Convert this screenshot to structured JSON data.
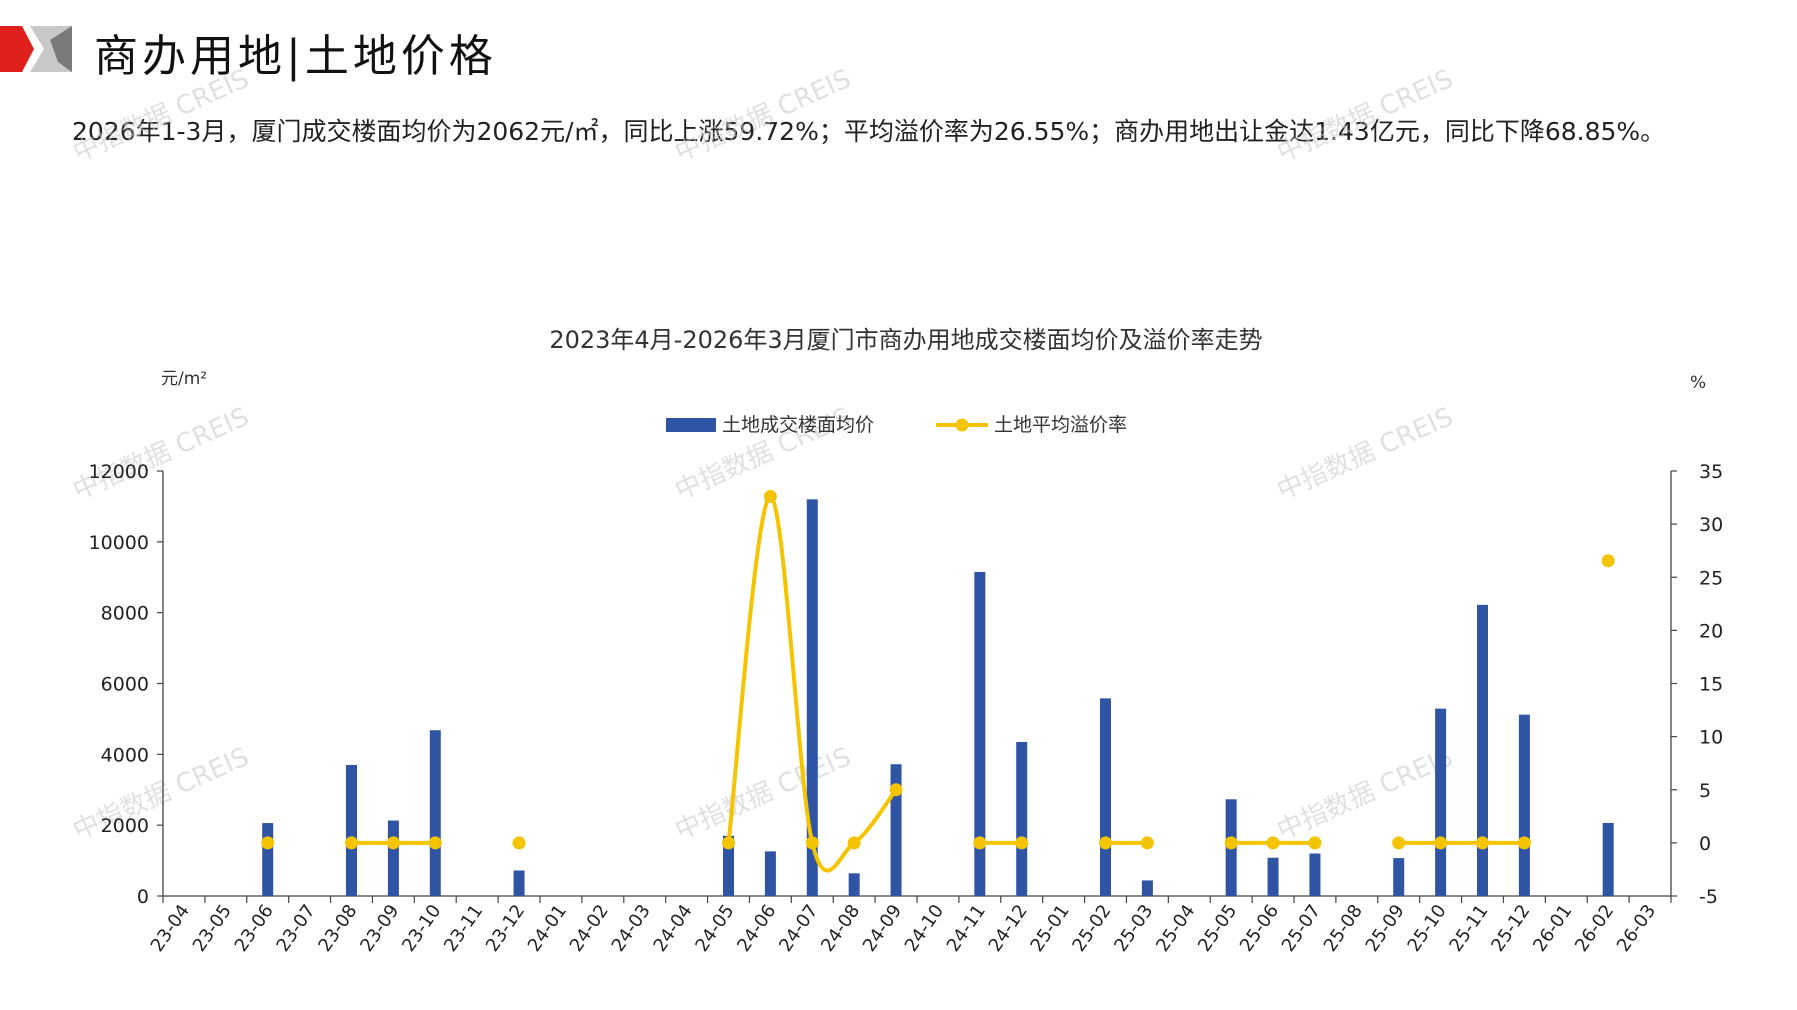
{
  "page": {
    "title": "商办用地|土地价格",
    "summary": "2026年1-3月，厦门成交楼面均价为2062元/㎡，同比上涨59.72%；平均溢价率为26.55%；商办用地出让金达1.43亿元，同比下降68.85%。",
    "watermark": "中指数据 CREIS"
  },
  "colors": {
    "bar": "#2F54A3",
    "line": "#F5C400",
    "header_red": "#E0201D",
    "header_gray": "#BDBDBD",
    "axis": "#444444"
  },
  "chart_data": {
    "type": "bar",
    "title": "2023年4月-2026年3月厦门市商办用地成交楼面均价及溢价率走势",
    "y_left_unit": "元/m²",
    "y_right_unit": "%",
    "ylim_left": [
      0,
      12000
    ],
    "ylim_right": [
      -5,
      35
    ],
    "yticks_left": [
      0,
      2000,
      4000,
      6000,
      8000,
      10000,
      12000
    ],
    "yticks_right": [
      -5,
      0,
      5,
      10,
      15,
      20,
      25,
      30,
      35
    ],
    "grid": false,
    "legend_position": "top-center",
    "categories": [
      "23-04",
      "23-05",
      "23-06",
      "23-07",
      "23-08",
      "23-09",
      "23-10",
      "23-11",
      "23-12",
      "24-01",
      "24-02",
      "24-03",
      "24-04",
      "24-05",
      "24-06",
      "24-07",
      "24-08",
      "24-09",
      "24-10",
      "24-11",
      "24-12",
      "25-01",
      "25-02",
      "25-03",
      "25-04",
      "25-05",
      "25-06",
      "25-07",
      "25-08",
      "25-09",
      "25-10",
      "25-11",
      "25-12",
      "26-01",
      "26-02",
      "26-03"
    ],
    "series": [
      {
        "name": "土地成交楼面均价",
        "type": "bar",
        "axis": "left",
        "values": [
          null,
          null,
          2060,
          null,
          3700,
          2130,
          4680,
          null,
          720,
          null,
          null,
          null,
          null,
          1700,
          1260,
          11200,
          640,
          3720,
          null,
          9150,
          4350,
          null,
          5580,
          440,
          null,
          2730,
          1080,
          1200,
          null,
          1070,
          5290,
          8220,
          5120,
          null,
          2062,
          null
        ]
      },
      {
        "name": "土地平均溢价率",
        "type": "line",
        "axis": "right",
        "values": [
          null,
          null,
          0,
          null,
          0,
          0,
          0,
          null,
          0,
          null,
          null,
          null,
          null,
          0,
          32.6,
          0,
          0,
          5,
          null,
          0,
          0,
          null,
          0,
          0,
          null,
          0,
          0,
          0,
          null,
          0,
          0,
          0,
          0,
          null,
          26.55,
          null
        ]
      }
    ]
  }
}
